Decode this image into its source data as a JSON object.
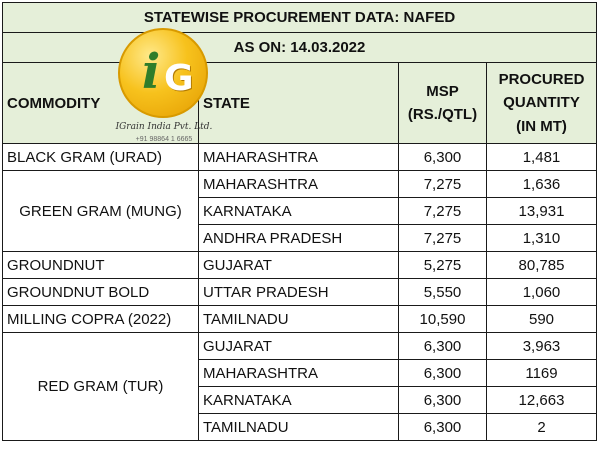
{
  "title": "STATEWISE PROCUREMENT DATA: NAFED",
  "as_on": "AS ON: 14.03.2022",
  "columns": {
    "commodity": "COMMODITY",
    "state": "STATE",
    "msp_1": "MSP",
    "msp_2": "(RS./QTL)",
    "qty_1": "PROCURED",
    "qty_2": "QUANTITY",
    "qty_3": "(IN MT)"
  },
  "logo": {
    "mark_i": "i",
    "mark_g": "G",
    "name": "IGrain India Pvt. Ltd.",
    "tel": "+91 98864 1 6665"
  },
  "rows": [
    {
      "commodity": "BLACK GRAM (URAD)",
      "state": "MAHARASHTRA",
      "msp": "6,300",
      "qty": "1,481"
    },
    {
      "commodity": "GREEN GRAM (MUNG)",
      "state": "MAHARASHTRA",
      "msp": "7,275",
      "qty": "1,636"
    },
    {
      "commodity": "",
      "state": "KARNATAKA",
      "msp": "7,275",
      "qty": "13,931"
    },
    {
      "commodity": "",
      "state": "ANDHRA PRADESH",
      "msp": "7,275",
      "qty": "1,310"
    },
    {
      "commodity": "GROUNDNUT",
      "state": "GUJARAT",
      "msp": "5,275",
      "qty": "80,785"
    },
    {
      "commodity": "GROUNDNUT BOLD",
      "state": "UTTAR PRADESH",
      "msp": "5,550",
      "qty": "1,060"
    },
    {
      "commodity": "MILLING COPRA (2022)",
      "state": "TAMILNADU",
      "msp": "10,590",
      "qty": "590"
    },
    {
      "commodity": "RED GRAM (TUR)",
      "state": "GUJARAT",
      "msp": "6,300",
      "qty": "3,963"
    },
    {
      "commodity": "",
      "state": "MAHARASHTRA",
      "msp": "6,300",
      "qty": "1169"
    },
    {
      "commodity": "",
      "state": "KARNATAKA",
      "msp": "6,300",
      "qty": "12,663"
    },
    {
      "commodity": "",
      "state": "TAMILNADU",
      "msp": "6,300",
      "qty": "2"
    }
  ]
}
